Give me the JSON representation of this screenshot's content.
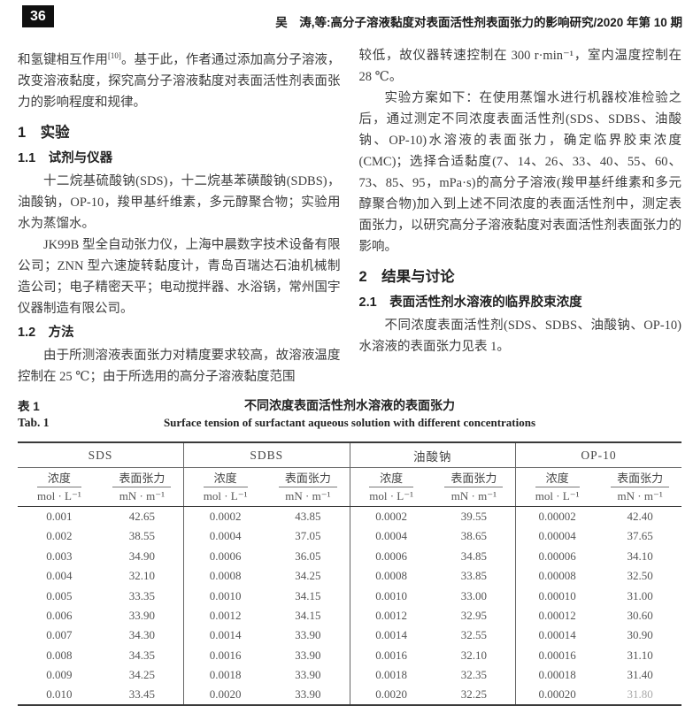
{
  "page_number": "36",
  "running_header": "吴　涛,等:高分子溶液黏度对表面活性剂表面张力的影响研究/2020 年第 10 期",
  "left_column": {
    "para_intro_pre": "和氢键相互作用",
    "para_intro_sup": "[10]",
    "para_intro_post": "。基于此，作者通过添加高分子溶液，改变溶液黏度，探究高分子溶液黏度对表面活性剂表面张力的影响程度和规律。",
    "section1_title": "1　实验",
    "section11_title": "1.1　试剂与仪器",
    "para_reagents": "十二烷基硫酸钠(SDS)，十二烷基苯磺酸钠(SDBS)，油酸钠，OP-10，羧甲基纤维素，多元醇聚合物；实验用水为蒸馏水。",
    "para_instruments": "JK99B 型全自动张力仪，上海中晨数字技术设备有限公司；ZNN 型六速旋转黏度计，青岛百瑞达石油机械制造公司；电子精密天平；电动搅拌器、水浴锅，常州国宇仪器制造有限公司。",
    "section12_title": "1.2　方法",
    "para_method": "由于所测溶液表面张力对精度要求较高，故溶液温度控制在 25 ℃；由于所选用的高分子溶液黏度范围"
  },
  "right_column": {
    "para_cont": "较低，故仪器转速控制在 300 r·min⁻¹，室内温度控制在 28 ℃。",
    "para_plan": "实验方案如下：在使用蒸馏水进行机器校准检验之后，通过测定不同浓度表面活性剂(SDS、SDBS、油酸钠、OP-10)水溶液的表面张力，确定临界胶束浓度(CMC)；选择合适黏度(7、14、26、33、40、55、60、73、85、95，mPa·s)的高分子溶液(羧甲基纤维素和多元醇聚合物)加入到上述不同浓度的表面活性剂中，测定表面张力，以研究高分子溶液黏度对表面活性剂表面张力的影响。",
    "section2_title": "2　结果与讨论",
    "section21_title": "2.1　表面活性剂水溶液的临界胶束浓度",
    "para_result": "不同浓度表面活性剂(SDS、SDBS、油酸钠、OP-10)水溶液的表面张力见表 1。"
  },
  "table": {
    "label_cn": "表 1",
    "caption_cn": "不同浓度表面活性剂水溶液的表面张力",
    "label_en": "Tab. 1",
    "caption_en": "Surface tension of surfactant aqueous solution with different concentrations",
    "conc_label": "浓度",
    "conc_unit": "mol · L⁻¹",
    "tension_label": "表面张力",
    "tension_unit": "mN · m⁻¹",
    "groups": [
      {
        "name": "SDS",
        "rows": [
          [
            "0.001",
            "42.65"
          ],
          [
            "0.002",
            "38.55"
          ],
          [
            "0.003",
            "34.90"
          ],
          [
            "0.004",
            "32.10"
          ],
          [
            "0.005",
            "33.35"
          ],
          [
            "0.006",
            "33.90"
          ],
          [
            "0.007",
            "34.30"
          ],
          [
            "0.008",
            "34.35"
          ],
          [
            "0.009",
            "34.25"
          ],
          [
            "0.010",
            "33.45"
          ]
        ]
      },
      {
        "name": "SDBS",
        "rows": [
          [
            "0.0002",
            "43.85"
          ],
          [
            "0.0004",
            "37.05"
          ],
          [
            "0.0006",
            "36.05"
          ],
          [
            "0.0008",
            "34.25"
          ],
          [
            "0.0010",
            "34.15"
          ],
          [
            "0.0012",
            "34.15"
          ],
          [
            "0.0014",
            "33.90"
          ],
          [
            "0.0016",
            "33.90"
          ],
          [
            "0.0018",
            "33.90"
          ],
          [
            "0.0020",
            "33.90"
          ]
        ]
      },
      {
        "name": "油酸钠",
        "rows": [
          [
            "0.0002",
            "39.55"
          ],
          [
            "0.0004",
            "38.65"
          ],
          [
            "0.0006",
            "34.85"
          ],
          [
            "0.0008",
            "33.85"
          ],
          [
            "0.0010",
            "33.00"
          ],
          [
            "0.0012",
            "32.95"
          ],
          [
            "0.0014",
            "32.55"
          ],
          [
            "0.0016",
            "32.10"
          ],
          [
            "0.0018",
            "32.35"
          ],
          [
            "0.0020",
            "32.25"
          ]
        ]
      },
      {
        "name": "OP-10",
        "rows": [
          [
            "0.00002",
            "42.40"
          ],
          [
            "0.00004",
            "37.65"
          ],
          [
            "0.00006",
            "34.10"
          ],
          [
            "0.00008",
            "32.50"
          ],
          [
            "0.00010",
            "31.00"
          ],
          [
            "0.00012",
            "30.60"
          ],
          [
            "0.00014",
            "30.90"
          ],
          [
            "0.00016",
            "31.10"
          ],
          [
            "0.00018",
            "31.40"
          ],
          [
            "0.00020",
            "31.80"
          ]
        ]
      }
    ]
  }
}
